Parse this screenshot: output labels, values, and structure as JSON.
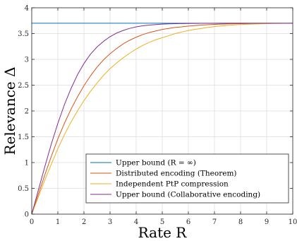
{
  "chart_data": {
    "type": "line",
    "xlabel": "Rate R",
    "ylabel": "Relevance Δ",
    "xlim": [
      0,
      10
    ],
    "ylim": [
      0,
      4
    ],
    "xticks": [
      "0",
      "1",
      "2",
      "3",
      "4",
      "5",
      "6",
      "7",
      "8",
      "9",
      "10"
    ],
    "yticks": [
      "0",
      "0.5",
      "1",
      "1.5",
      "2",
      "2.5",
      "3",
      "3.5",
      "4"
    ],
    "grid": true,
    "legend_position": "bottom-right",
    "series": [
      {
        "name": "Upper bound (R = ∞)",
        "color": "#0072BD",
        "x": [
          0,
          10
        ],
        "y": [
          3.7,
          3.7
        ]
      },
      {
        "name": "Distributed encoding (Theorem)",
        "color": "#D95319",
        "x": [
          0,
          0.25,
          0.5,
          0.75,
          1,
          1.25,
          1.5,
          1.75,
          2,
          2.25,
          2.5,
          2.75,
          3,
          3.25,
          3.5,
          3.75,
          4,
          4.25,
          4.5,
          4.75,
          5,
          5.25,
          5.5,
          5.75,
          6,
          6.25,
          6.5,
          6.75,
          7,
          7.25,
          7.5,
          7.75,
          8,
          8.25,
          8.5,
          8.75,
          9,
          9.25,
          9.5,
          9.75,
          10
        ],
        "y": [
          0,
          0.38,
          0.76,
          1.12,
          1.46,
          1.76,
          2.03,
          2.27,
          2.49,
          2.68,
          2.85,
          2.99,
          3.11,
          3.21,
          3.3,
          3.37,
          3.43,
          3.48,
          3.52,
          3.55,
          3.58,
          3.6,
          3.62,
          3.63,
          3.645,
          3.655,
          3.665,
          3.672,
          3.678,
          3.683,
          3.687,
          3.69,
          3.692,
          3.694,
          3.695,
          3.696,
          3.697,
          3.698,
          3.699,
          3.699,
          3.7
        ]
      },
      {
        "name": "Independent PtP compression",
        "color": "#EDB120",
        "x": [
          0,
          0.25,
          0.5,
          0.75,
          1,
          1.25,
          1.5,
          1.75,
          2,
          2.25,
          2.5,
          2.75,
          3,
          3.25,
          3.5,
          3.75,
          4,
          4.25,
          4.5,
          4.75,
          5,
          5.25,
          5.5,
          5.75,
          6,
          6.25,
          6.5,
          6.75,
          7,
          7.25,
          7.5,
          7.75,
          8,
          8.25,
          8.5,
          8.75,
          9,
          9.25,
          9.5,
          9.75,
          10
        ],
        "y": [
          0,
          0.33,
          0.66,
          0.97,
          1.27,
          1.54,
          1.78,
          2.0,
          2.2,
          2.38,
          2.54,
          2.69,
          2.82,
          2.93,
          3.03,
          3.12,
          3.2,
          3.27,
          3.33,
          3.38,
          3.42,
          3.46,
          3.5,
          3.53,
          3.56,
          3.58,
          3.6,
          3.62,
          3.635,
          3.648,
          3.658,
          3.667,
          3.674,
          3.68,
          3.685,
          3.689,
          3.692,
          3.695,
          3.697,
          3.699,
          3.7
        ]
      },
      {
        "name": "Upper bound (Collaborative encoding)",
        "color": "#7E2F8E",
        "x": [
          0,
          0.25,
          0.5,
          0.75,
          1,
          1.25,
          1.5,
          1.75,
          2,
          2.25,
          2.5,
          2.75,
          3,
          3.25,
          3.5,
          3.75,
          4,
          4.25,
          4.5,
          4.75,
          5,
          5.25,
          5.5,
          5.75,
          6,
          6.25,
          6.5,
          6.75,
          7,
          7.25,
          7.5,
          7.75,
          8,
          8.25,
          8.5,
          8.75,
          9,
          9.25,
          9.5,
          9.75,
          10
        ],
        "y": [
          0,
          0.46,
          0.92,
          1.36,
          1.76,
          2.12,
          2.43,
          2.7,
          2.92,
          3.1,
          3.24,
          3.35,
          3.44,
          3.51,
          3.56,
          3.6,
          3.63,
          3.65,
          3.665,
          3.675,
          3.683,
          3.688,
          3.692,
          3.694,
          3.696,
          3.697,
          3.698,
          3.699,
          3.699,
          3.7,
          3.7,
          3.7,
          3.7,
          3.7,
          3.7,
          3.7,
          3.7,
          3.7,
          3.7,
          3.7,
          3.7
        ]
      }
    ]
  }
}
